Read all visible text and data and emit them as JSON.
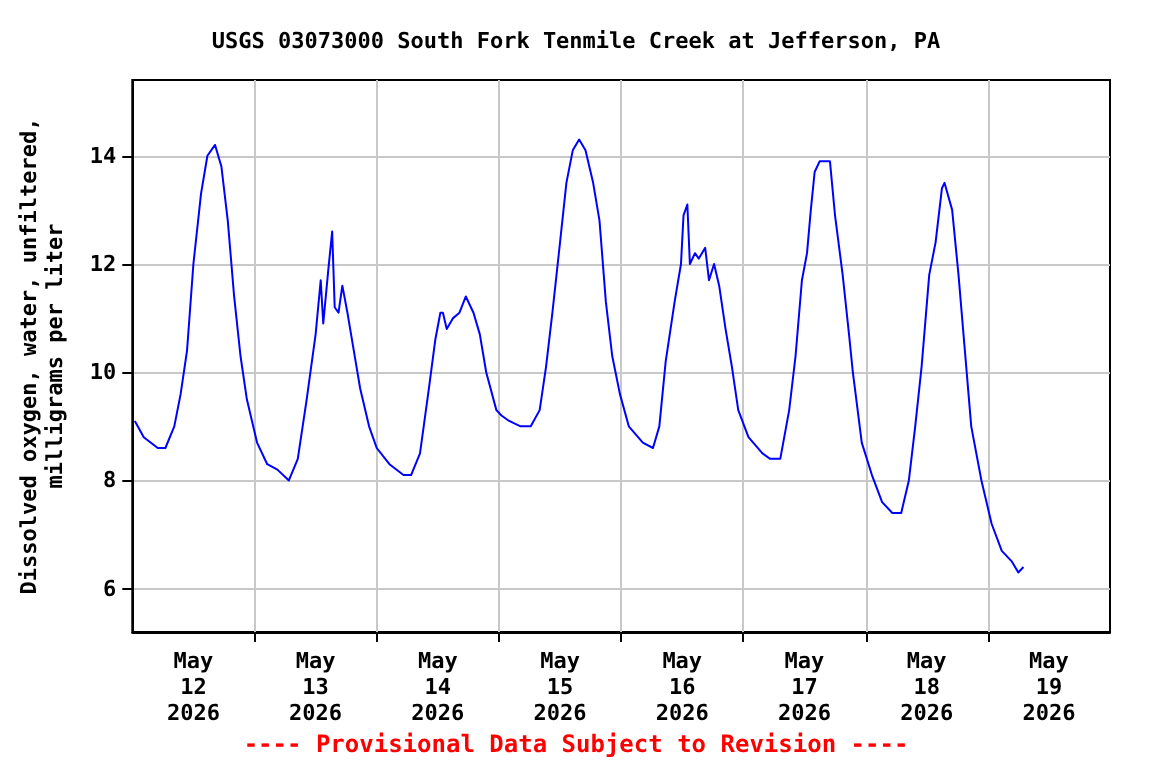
{
  "chart_data": {
    "type": "line",
    "title": "USGS 03073000 South Fork Tenmile Creek at Jefferson, PA",
    "ylabel": "Dissolved oxygen, water, unfiltered,\nmilligrams per liter",
    "annotations": [
      "---- Provisional Data Subject to Revision ----"
    ],
    "x": [
      "2026-05-12T00:30",
      "2026-05-12T02:15",
      "2026-05-12T05:00",
      "2026-05-12T06:30",
      "2026-05-12T08:15",
      "2026-05-12T09:30",
      "2026-05-12T10:45",
      "2026-05-12T12:00",
      "2026-05-12T13:30",
      "2026-05-12T14:45",
      "2026-05-12T16:15",
      "2026-05-12T17:30",
      "2026-05-12T18:45",
      "2026-05-12T20:00",
      "2026-05-12T21:15",
      "2026-05-12T22:30",
      "2026-05-13T00:30",
      "2026-05-13T02:30",
      "2026-05-13T04:30",
      "2026-05-13T06:45",
      "2026-05-13T08:30",
      "2026-05-13T10:15",
      "2026-05-13T12:00",
      "2026-05-13T13:00",
      "2026-05-13T13:30",
      "2026-05-13T14:30",
      "2026-05-13T15:15",
      "2026-05-13T15:45",
      "2026-05-13T16:30",
      "2026-05-13T17:15",
      "2026-05-13T18:15",
      "2026-05-13T19:30",
      "2026-05-13T20:45",
      "2026-05-13T22:30",
      "2026-05-14T00:00",
      "2026-05-14T02:30",
      "2026-05-14T05:15",
      "2026-05-14T06:45",
      "2026-05-14T08:30",
      "2026-05-14T10:15",
      "2026-05-14T11:30",
      "2026-05-14T12:30",
      "2026-05-14T13:00",
      "2026-05-14T13:45",
      "2026-05-14T15:00",
      "2026-05-14T16:15",
      "2026-05-14T17:30",
      "2026-05-14T19:00",
      "2026-05-14T20:15",
      "2026-05-14T21:30",
      "2026-05-14T23:30",
      "2026-05-15T00:30",
      "2026-05-15T02:00",
      "2026-05-15T04:15",
      "2026-05-15T06:15",
      "2026-05-15T08:00",
      "2026-05-15T09:15",
      "2026-05-15T10:30",
      "2026-05-15T12:00",
      "2026-05-15T13:15",
      "2026-05-15T14:30",
      "2026-05-15T15:45",
      "2026-05-15T17:00",
      "2026-05-15T18:30",
      "2026-05-15T19:45",
      "2026-05-15T21:00",
      "2026-05-15T22:15",
      "2026-05-15T23:45",
      "2026-05-16T01:30",
      "2026-05-16T04:15",
      "2026-05-16T06:15",
      "2026-05-16T07:30",
      "2026-05-16T08:45",
      "2026-05-16T10:30",
      "2026-05-16T11:45",
      "2026-05-16T12:15",
      "2026-05-16T13:00",
      "2026-05-16T13:30",
      "2026-05-16T14:30",
      "2026-05-16T15:15",
      "2026-05-16T16:30",
      "2026-05-16T17:15",
      "2026-05-16T18:15",
      "2026-05-16T19:15",
      "2026-05-16T20:30",
      "2026-05-16T21:45",
      "2026-05-16T23:00",
      "2026-05-17T01:00",
      "2026-05-17T03:45",
      "2026-05-17T05:15",
      "2026-05-17T07:15",
      "2026-05-17T09:00",
      "2026-05-17T10:15",
      "2026-05-17T11:30",
      "2026-05-17T12:30",
      "2026-05-17T13:15",
      "2026-05-17T14:00",
      "2026-05-17T15:00",
      "2026-05-17T17:00",
      "2026-05-17T18:00",
      "2026-05-17T19:30",
      "2026-05-17T20:45",
      "2026-05-17T21:30",
      "2026-05-17T23:15",
      "2026-05-18T01:15",
      "2026-05-18T03:15",
      "2026-05-18T05:15",
      "2026-05-18T07:00",
      "2026-05-18T08:30",
      "2026-05-18T09:45",
      "2026-05-18T11:00",
      "2026-05-18T12:30",
      "2026-05-18T13:45",
      "2026-05-18T15:00",
      "2026-05-18T15:30",
      "2026-05-18T17:00",
      "2026-05-18T18:15",
      "2026-05-18T19:30",
      "2026-05-18T20:45",
      "2026-05-18T22:45",
      "2026-05-19T00:45",
      "2026-05-19T02:45",
      "2026-05-19T04:45",
      "2026-05-19T06:00",
      "2026-05-19T07:00"
    ],
    "series": [
      {
        "color": "#0000ff",
        "values": [
          9.1,
          8.8,
          8.6,
          8.6,
          9.0,
          9.6,
          10.4,
          12.0,
          13.3,
          14.0,
          14.2,
          13.8,
          12.8,
          11.4,
          10.3,
          9.5,
          8.7,
          8.3,
          8.2,
          8.0,
          8.4,
          9.5,
          10.7,
          11.7,
          10.9,
          11.9,
          12.6,
          11.2,
          11.1,
          11.6,
          11.1,
          10.4,
          9.7,
          9.0,
          8.6,
          8.3,
          8.1,
          8.1,
          8.5,
          9.7,
          10.6,
          11.1,
          11.1,
          10.8,
          11.0,
          11.1,
          11.4,
          11.1,
          10.7,
          10.0,
          9.3,
          9.2,
          9.1,
          9.0,
          9.0,
          9.3,
          10.1,
          11.1,
          12.4,
          13.5,
          14.1,
          14.3,
          14.1,
          13.5,
          12.8,
          11.3,
          10.3,
          9.6,
          9.0,
          8.7,
          8.6,
          9.0,
          10.2,
          11.3,
          12.0,
          12.9,
          13.1,
          12.0,
          12.2,
          12.1,
          12.3,
          11.7,
          12.0,
          11.6,
          10.8,
          10.1,
          9.3,
          8.8,
          8.5,
          8.4,
          8.4,
          9.3,
          10.3,
          11.7,
          12.2,
          13.0,
          13.7,
          13.9,
          13.9,
          12.9,
          11.8,
          10.7,
          10.0,
          8.7,
          8.1,
          7.6,
          7.4,
          7.4,
          8.0,
          9.0,
          10.1,
          11.8,
          12.4,
          13.4,
          13.5,
          13.0,
          11.8,
          10.4,
          9.0,
          8.0,
          7.2,
          6.7,
          6.5,
          6.3,
          6.4
        ]
      }
    ],
    "xlim": [
      "2026-05-12T00:00",
      "2026-05-20T00:00"
    ],
    "xticks": [
      {
        "value": "2026-05-12T12:00",
        "label": "May\n12\n2026"
      },
      {
        "value": "2026-05-13T00:00",
        "label": null
      },
      {
        "value": "2026-05-13T12:00",
        "label": "May\n13\n2026"
      },
      {
        "value": "2026-05-14T00:00",
        "label": null
      },
      {
        "value": "2026-05-14T12:00",
        "label": "May\n14\n2026"
      },
      {
        "value": "2026-05-15T00:00",
        "label": null
      },
      {
        "value": "2026-05-15T12:00",
        "label": "May\n15\n2026"
      },
      {
        "value": "2026-05-16T00:00",
        "label": null
      },
      {
        "value": "2026-05-16T12:00",
        "label": "May\n16\n2026"
      },
      {
        "value": "2026-05-17T00:00",
        "label": null
      },
      {
        "value": "2026-05-17T12:00",
        "label": "May\n17\n2026"
      },
      {
        "value": "2026-05-18T00:00",
        "label": null
      },
      {
        "value": "2026-05-18T12:00",
        "label": "May\n18\n2026"
      },
      {
        "value": "2026-05-19T00:00",
        "label": null
      },
      {
        "value": "2026-05-19T12:00",
        "label": "May\n19\n2026"
      }
    ],
    "ylim": [
      5.2,
      15.4
    ],
    "yticks": [
      6,
      8,
      10,
      12,
      14
    ],
    "grid": true,
    "marker": "none",
    "line_style": "solid"
  }
}
